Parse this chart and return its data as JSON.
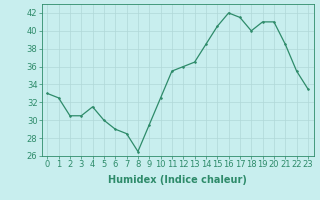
{
  "x": [
    0,
    1,
    2,
    3,
    4,
    5,
    6,
    7,
    8,
    9,
    10,
    11,
    12,
    13,
    14,
    15,
    16,
    17,
    18,
    19,
    20,
    21,
    22,
    23
  ],
  "y": [
    33,
    32.5,
    30.5,
    30.5,
    31.5,
    30,
    29,
    28.5,
    26.5,
    29.5,
    32.5,
    35.5,
    36,
    36.5,
    38.5,
    40.5,
    42,
    41.5,
    40,
    41,
    41,
    38.5,
    35.5,
    33.5
  ],
  "line_color": "#2e8b6a",
  "marker_color": "#2e8b6a",
  "bg_color": "#c8eeee",
  "grid_color": "#b0d8d8",
  "xlabel": "Humidex (Indice chaleur)",
  "ylim": [
    26,
    43
  ],
  "xlim": [
    -0.5,
    23.5
  ],
  "yticks": [
    26,
    28,
    30,
    32,
    34,
    36,
    38,
    40,
    42
  ],
  "xticks": [
    0,
    1,
    2,
    3,
    4,
    5,
    6,
    7,
    8,
    9,
    10,
    11,
    12,
    13,
    14,
    15,
    16,
    17,
    18,
    19,
    20,
    21,
    22,
    23
  ],
  "tick_color": "#2e8b6a",
  "label_fontsize": 7,
  "tick_fontsize": 6
}
